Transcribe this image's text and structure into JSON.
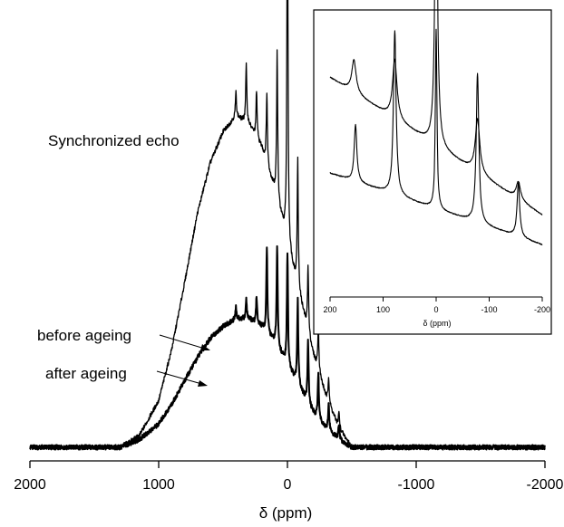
{
  "chart_data": [
    {
      "type": "line",
      "title": "Synchronized echo",
      "xlabel": "δ (ppm)",
      "ylabel": "",
      "xlim": [
        2000,
        -2000
      ],
      "x_ticks": [
        2000,
        1000,
        0,
        -1000,
        -2000
      ],
      "x_tick_labels": [
        "2000",
        "1000",
        "0",
        "-1000",
        "-2000"
      ],
      "axis_reversed": true,
      "grid": false,
      "annotations": [
        {
          "text": "before ageing",
          "points_to_series": "before ageing"
        },
        {
          "text": "after ageing",
          "points_to_series": "after ageing"
        }
      ],
      "series": [
        {
          "name": "before ageing",
          "baseline": 0.0,
          "envelope": [
            [
              1300,
              0.0
            ],
            [
              1150,
              0.03
            ],
            [
              1000,
              0.12
            ],
            [
              900,
              0.25
            ],
            [
              800,
              0.42
            ],
            [
              700,
              0.6
            ],
            [
              600,
              0.73
            ],
            [
              500,
              0.81
            ],
            [
              400,
              0.85
            ],
            [
              300,
              0.83
            ],
            [
              200,
              0.77
            ],
            [
              100,
              0.66
            ],
            [
              0,
              0.52
            ],
            [
              -100,
              0.38
            ],
            [
              -200,
              0.24
            ],
            [
              -300,
              0.13
            ],
            [
              -400,
              0.05
            ],
            [
              -500,
              0.0
            ]
          ],
          "spinning_sidebands": [
            [
              400,
              0.06
            ],
            [
              320,
              0.15
            ],
            [
              240,
              0.12
            ],
            [
              160,
              0.18
            ],
            [
              80,
              0.38
            ],
            [
              0,
              0.95
            ],
            [
              -80,
              0.33
            ],
            [
              -160,
              0.17
            ],
            [
              -240,
              0.12
            ],
            [
              -320,
              0.07
            ],
            [
              -400,
              0.04
            ]
          ]
        },
        {
          "name": "after ageing",
          "baseline": 0.0,
          "envelope": [
            [
              1300,
              0.0
            ],
            [
              1150,
              0.02
            ],
            [
              1000,
              0.06
            ],
            [
              900,
              0.11
            ],
            [
              800,
              0.17
            ],
            [
              700,
              0.23
            ],
            [
              600,
              0.28
            ],
            [
              500,
              0.31
            ],
            [
              400,
              0.33
            ],
            [
              300,
              0.33
            ],
            [
              200,
              0.31
            ],
            [
              100,
              0.27
            ],
            [
              0,
              0.21
            ],
            [
              -100,
              0.15
            ],
            [
              -200,
              0.09
            ],
            [
              -300,
              0.05
            ],
            [
              -400,
              0.02
            ],
            [
              -500,
              0.0
            ]
          ],
          "spinning_sidebands": [
            [
              400,
              0.03
            ],
            [
              320,
              0.05
            ],
            [
              240,
              0.07
            ],
            [
              160,
              0.22
            ],
            [
              80,
              0.26
            ],
            [
              0,
              0.29
            ],
            [
              -80,
              0.22
            ],
            [
              -160,
              0.16
            ],
            [
              -240,
              0.12
            ],
            [
              -320,
              0.07
            ],
            [
              -400,
              0.04
            ]
          ]
        }
      ]
    },
    {
      "type": "line",
      "role": "inset",
      "xlabel": "δ (ppm)",
      "xlim": [
        200,
        -200
      ],
      "x_ticks": [
        200,
        100,
        0,
        -100,
        -200
      ],
      "x_tick_labels": [
        "200",
        "100",
        "0",
        "-100",
        "-200"
      ],
      "axis_reversed": true,
      "series": [
        {
          "name": "before ageing",
          "baseline": [
            [
              200,
              0.74
            ],
            [
              -200,
              0.28
            ]
          ],
          "peaks": [
            [
              155,
              0.11
            ],
            [
              78,
              0.2
            ],
            [
              0,
              0.98
            ],
            [
              -78,
              0.18
            ],
            [
              -155,
              0.06
            ]
          ]
        },
        {
          "name": "after ageing",
          "baseline": [
            [
              200,
              0.42
            ],
            [
              -200,
              0.18
            ]
          ],
          "peaks": [
            [
              152,
              0.19
            ],
            [
              78,
              0.55
            ],
            [
              0,
              0.6
            ],
            [
              -78,
              0.5
            ],
            [
              -155,
              0.18
            ]
          ]
        }
      ]
    }
  ]
}
